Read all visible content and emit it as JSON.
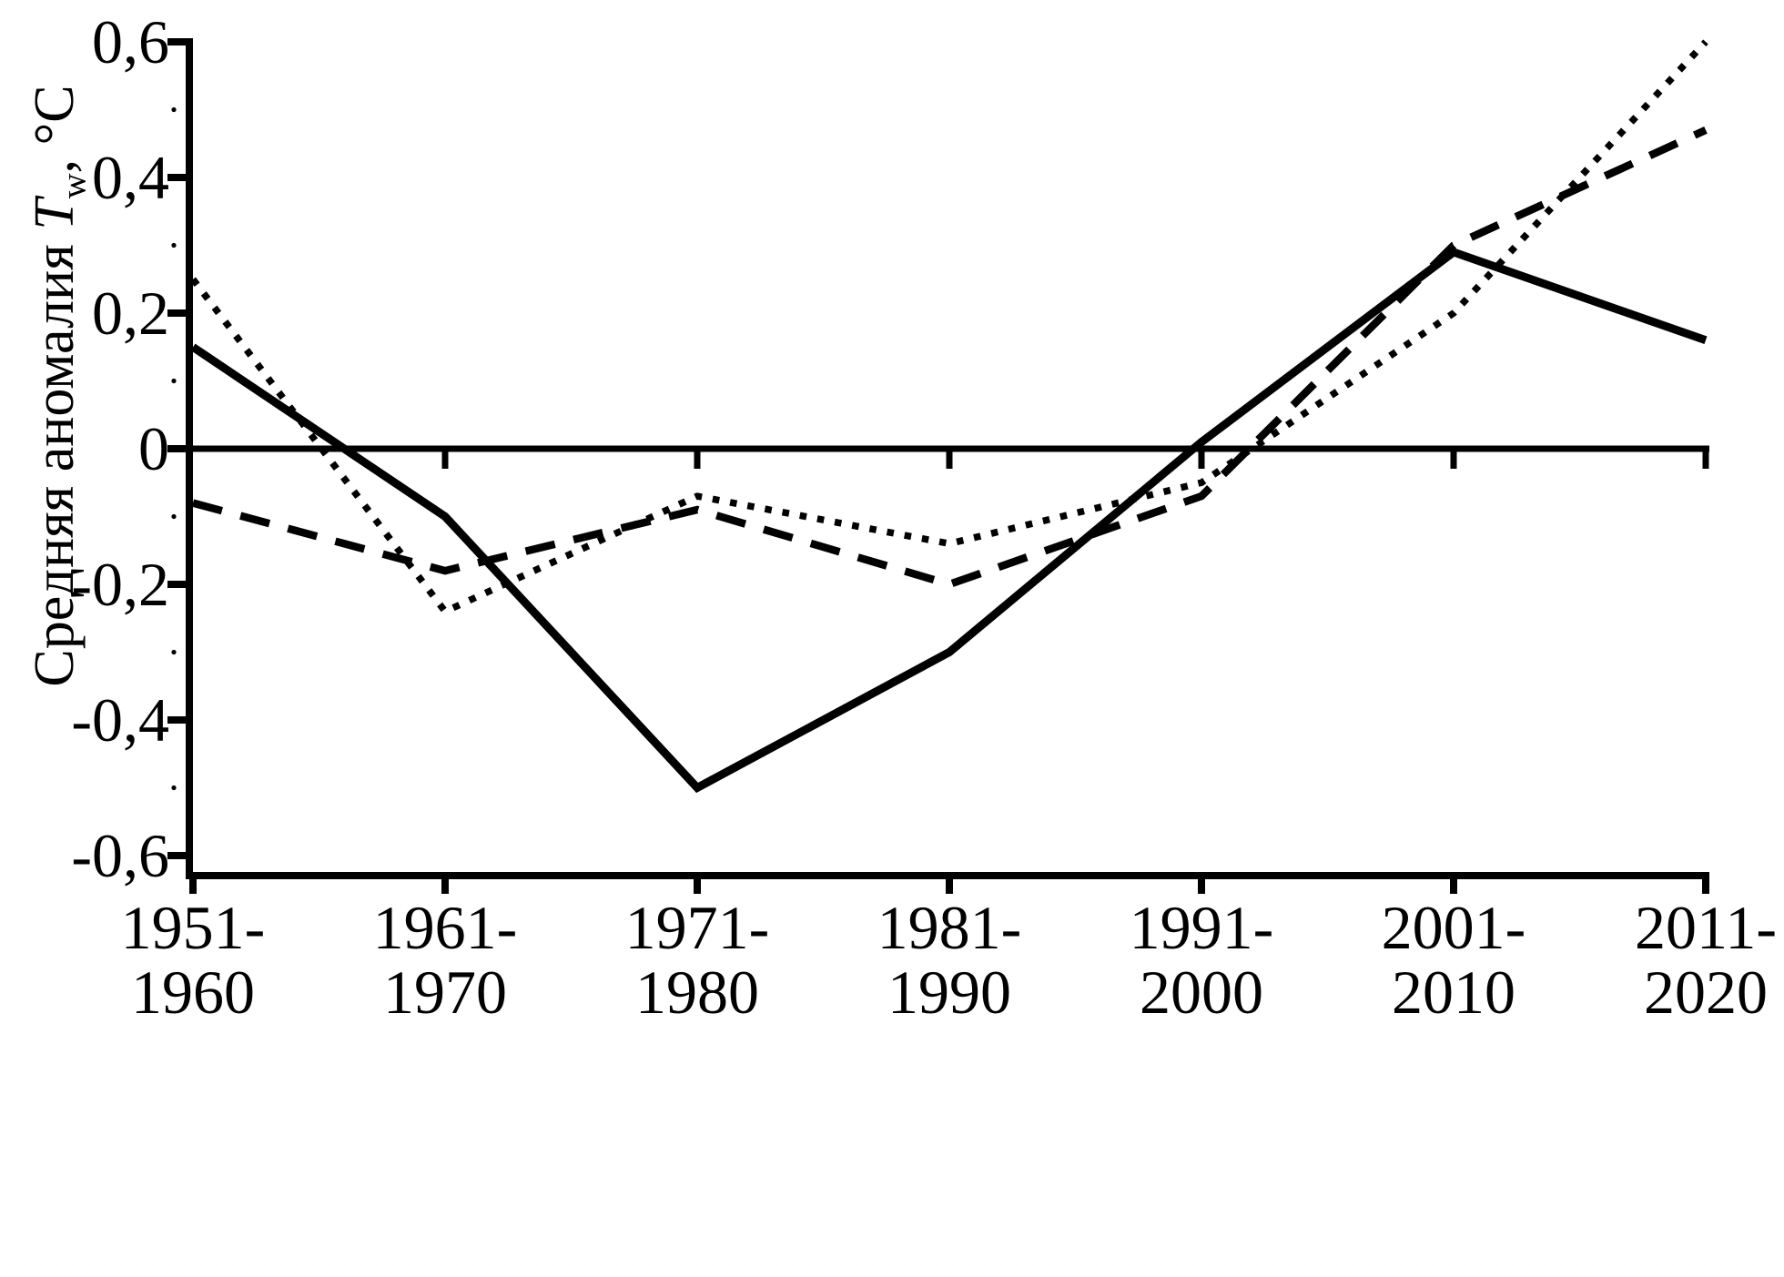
{
  "page": {
    "background": "#ffffff",
    "foreground": "#000000"
  },
  "chart_data": {
    "type": "line",
    "title": "",
    "xlabel": "",
    "ylabel_text": "Средняя аномалия Tw, °C",
    "ylabel": {
      "prefix": "Средняя аномалия ",
      "symbol": "T",
      "subscript": "w",
      "suffix": ", °C"
    },
    "categories": [
      "1951-1960",
      "1961-1970",
      "1971-1980",
      "1981-1990",
      "1991-2000",
      "2001-2010",
      "2011-2020"
    ],
    "x_tick_labels": [
      [
        "1951-",
        "1960"
      ],
      [
        "1961-",
        "1970"
      ],
      [
        "1971-",
        "1980"
      ],
      [
        "1981-",
        "1990"
      ],
      [
        "1991-",
        "2000"
      ],
      [
        "2001-",
        "2010"
      ],
      [
        "2011-",
        "2020"
      ]
    ],
    "y_ticks": [
      {
        "label": "0,6",
        "value": 0.6
      },
      {
        "label": "0,4",
        "value": 0.4
      },
      {
        "label": "0,2",
        "value": 0.2
      },
      {
        "label": "0",
        "value": 0.0
      },
      {
        "label": "-0,2",
        "value": -0.2
      },
      {
        "label": "-0,4",
        "value": -0.4
      },
      {
        "label": "-0,6",
        "value": -0.6
      }
    ],
    "y_minor_ticks": [
      0.5,
      0.3,
      0.1,
      -0.1,
      -0.3,
      -0.5
    ],
    "ylim": [
      -0.6,
      0.6
    ],
    "decimal_separator": ",",
    "grid": false,
    "legend": "none",
    "zero_line": true,
    "line_color": "#000000",
    "series": [
      {
        "name": "solid-line-series",
        "style": "solid",
        "values": [
          0.15,
          -0.1,
          -0.5,
          -0.3,
          0.01,
          0.29,
          0.16
        ]
      },
      {
        "name": "dashed-line-series",
        "style": "dashed",
        "values": [
          -0.08,
          -0.18,
          -0.09,
          -0.2,
          -0.07,
          0.3,
          0.47
        ]
      },
      {
        "name": "dotted-line-series",
        "style": "dotted",
        "values": [
          0.25,
          -0.24,
          -0.07,
          -0.14,
          -0.05,
          0.2,
          0.6
        ]
      }
    ]
  }
}
